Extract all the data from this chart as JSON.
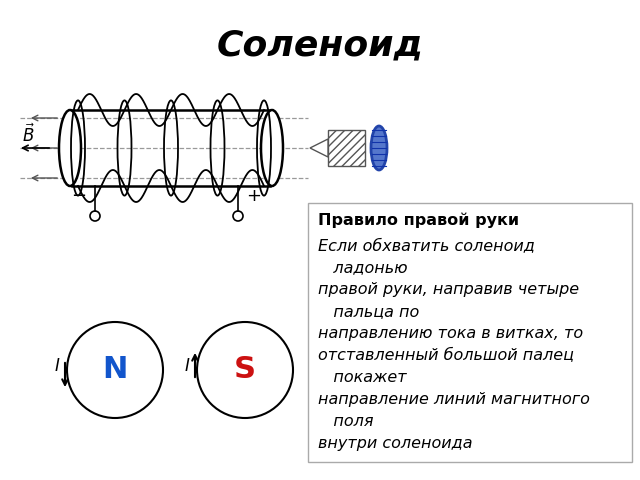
{
  "title": "Соленоид",
  "title_fontsize": 26,
  "title_fontstyle": "italic",
  "title_fontweight": "bold",
  "bg_color": "#ffffff",
  "text_box_title": "Правило правой руки",
  "text_box_lines": [
    [
      "italic",
      "Если обхватить соленоид"
    ],
    [
      "italic",
      "   ладонью"
    ],
    [
      "italic",
      "правой руки, направив четыре"
    ],
    [
      "italic",
      "   пальца по"
    ],
    [
      "italic",
      "направлению тока в витках, то"
    ],
    [
      "italic",
      "отставленный большой палец"
    ],
    [
      "italic",
      "   покажет"
    ],
    [
      "italic",
      "направление линий магнитного"
    ],
    [
      "italic",
      "   поля"
    ],
    [
      "italic",
      "внутри соленоида"
    ]
  ],
  "text_fontsize": 11.5
}
